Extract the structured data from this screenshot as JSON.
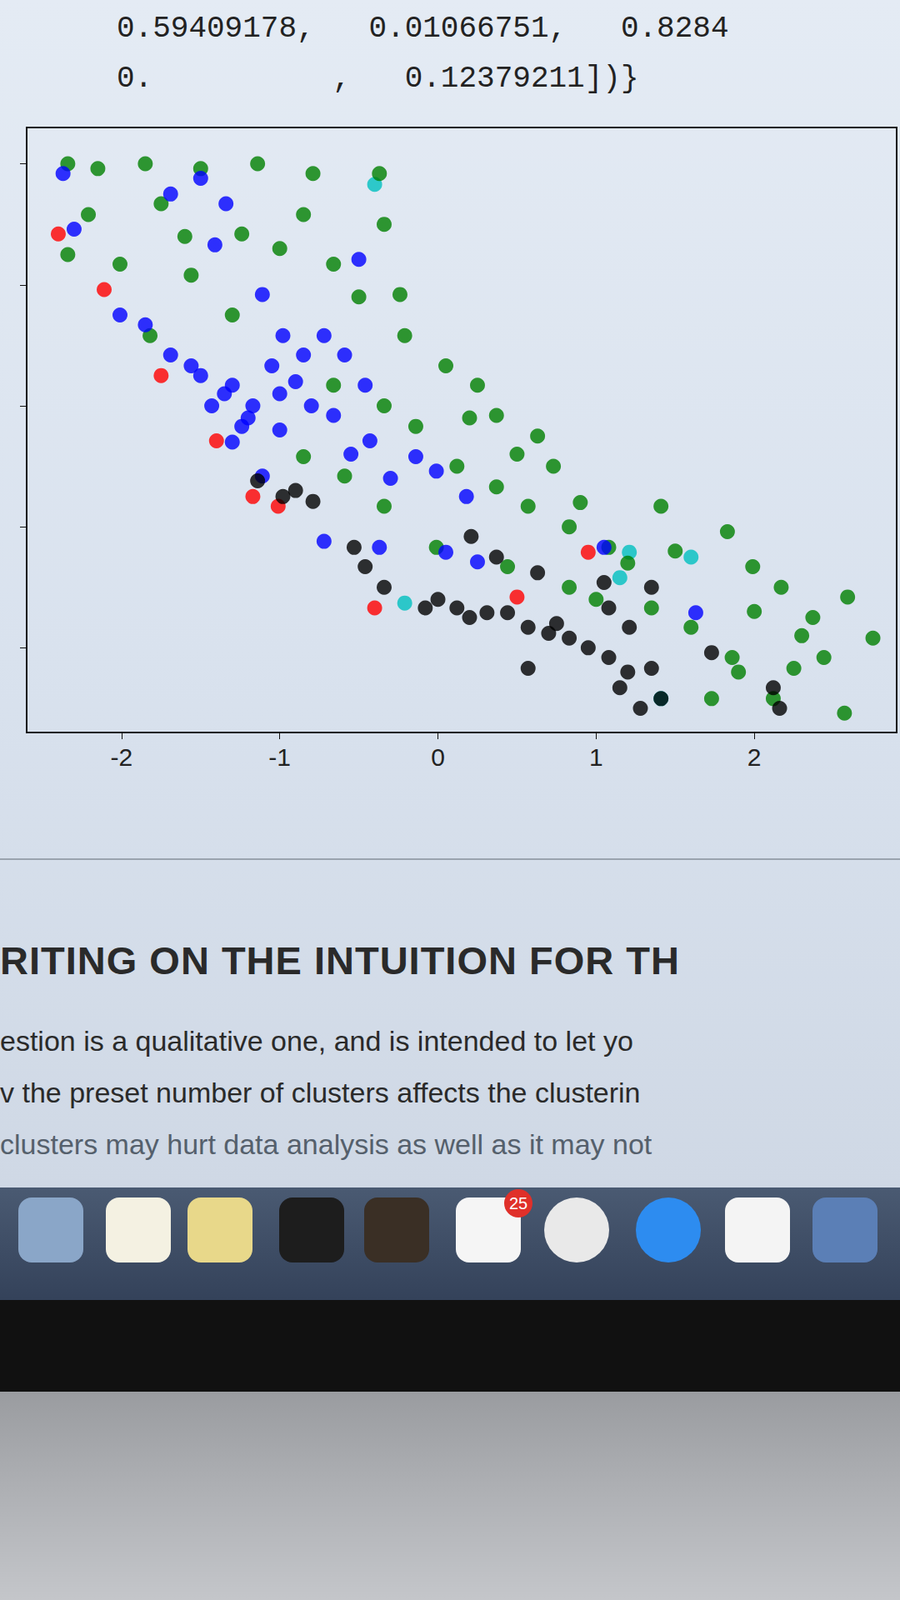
{
  "chart_data": {
    "type": "scatter",
    "series": [
      {
        "color": "#ff0000",
        "x": [
          -2.4,
          -2.11,
          -1.75,
          -1.4,
          -1.17,
          -1.01,
          -0.4,
          0.5,
          0.95
        ],
        "y": [
          2.42,
          1.96,
          1.25,
          0.71,
          0.25,
          0.17,
          -0.67,
          -0.58,
          -0.21
        ]
      },
      {
        "color": "#00bfbf",
        "x": [
          -0.4,
          1.21,
          1.6,
          -0.21,
          1.41,
          1.15
        ],
        "y": [
          2.83,
          -0.21,
          -0.25,
          -0.63,
          -1.42,
          -0.42
        ]
      },
      {
        "color": "#008000",
        "x": [
          -2.34,
          -2.15,
          -1.85,
          -1.5,
          -1.14,
          -0.79,
          -0.37,
          -2.21,
          -1.75,
          -1.24,
          -0.85,
          -0.34,
          -2.34,
          -2.01,
          -1.56,
          -0.66,
          -0.24,
          -1.82,
          -1.3,
          -0.21,
          0.05,
          0.25,
          0.37,
          0.63,
          0.73,
          -0.34,
          -0.14,
          0.12,
          0.37,
          0.57,
          0.83,
          1.08,
          1.41,
          1.83,
          1.99,
          2.17,
          2.37,
          2.59,
          2.75,
          2.57,
          2.44,
          2.25,
          1.86,
          1.6,
          1.35,
          0.83,
          0.44,
          -0.01,
          -0.34,
          -0.59,
          -0.85,
          -0.66,
          1.73,
          2.12,
          0.5,
          0.9,
          1.2,
          1.5,
          2.0,
          2.3,
          0.2,
          -0.5,
          -1.0,
          -1.6,
          1.9,
          1.0
        ],
        "y": [
          3.0,
          2.96,
          3.0,
          2.96,
          3.0,
          2.92,
          2.92,
          2.58,
          2.67,
          2.42,
          2.58,
          2.5,
          2.25,
          2.17,
          2.08,
          2.17,
          1.92,
          1.58,
          1.75,
          1.58,
          1.33,
          1.17,
          0.92,
          0.75,
          0.5,
          1.0,
          0.83,
          0.5,
          0.33,
          0.17,
          0.0,
          -0.17,
          0.17,
          -0.04,
          -0.33,
          -0.5,
          -0.75,
          -0.58,
          -0.92,
          -1.54,
          -1.08,
          -1.17,
          -1.08,
          -0.83,
          -0.67,
          -0.5,
          -0.33,
          -0.17,
          0.17,
          0.42,
          0.58,
          1.17,
          -1.42,
          -1.42,
          0.6,
          0.2,
          -0.3,
          -0.2,
          -0.7,
          -0.9,
          0.9,
          1.9,
          2.3,
          2.4,
          -1.2,
          -0.6
        ]
      },
      {
        "color": "#0000ff",
        "x": [
          -2.37,
          -2.3,
          -1.69,
          -1.5,
          -1.34,
          -1.41,
          -1.11,
          -0.98,
          -0.5,
          -2.01,
          -1.85,
          -1.69,
          -1.5,
          -1.3,
          -1.17,
          -1.05,
          -0.85,
          -0.72,
          -0.59,
          -0.66,
          -0.46,
          -0.43,
          -0.14,
          -0.01,
          0.18,
          0.05,
          -0.72,
          -0.37,
          0.25,
          1.05,
          1.63,
          -1.11,
          -1.24,
          -1.43,
          -1.56,
          -1.35,
          -1.2,
          -1.0,
          -0.9,
          -1.0,
          -0.8,
          -1.3,
          -0.3,
          -0.55
        ],
        "y": [
          2.92,
          2.46,
          2.75,
          2.88,
          2.67,
          2.33,
          1.92,
          1.58,
          2.21,
          1.75,
          1.67,
          1.42,
          1.25,
          1.17,
          1.0,
          1.33,
          1.42,
          1.58,
          1.42,
          0.92,
          1.17,
          0.71,
          0.58,
          0.46,
          0.25,
          -0.21,
          -0.12,
          -0.17,
          -0.29,
          -0.17,
          -0.71,
          0.42,
          0.83,
          1.0,
          1.33,
          1.1,
          0.9,
          1.1,
          1.2,
          0.8,
          1.0,
          0.7,
          0.4,
          0.6
        ]
      },
      {
        "color": "#000000",
        "x": [
          -1.14,
          -0.98,
          -0.79,
          -0.53,
          -0.46,
          -0.34,
          -0.08,
          0.12,
          0.31,
          0.44,
          0.57,
          0.7,
          0.83,
          0.95,
          1.08,
          0.57,
          1.15,
          1.28,
          1.41,
          1.35,
          0.21,
          0.37,
          0.63,
          1.05,
          1.35,
          1.73,
          2.12,
          2.16,
          1.08,
          1.21,
          0.0,
          0.2,
          0.75,
          1.2,
          -0.9
        ],
        "y": [
          0.38,
          0.25,
          0.21,
          -0.17,
          -0.33,
          -0.5,
          -0.67,
          -0.67,
          -0.71,
          -0.71,
          -0.83,
          -0.88,
          -0.92,
          -1.0,
          -1.08,
          -1.17,
          -1.33,
          -1.5,
          -1.42,
          -1.17,
          -0.08,
          -0.25,
          -0.38,
          -0.46,
          -0.5,
          -1.04,
          -1.33,
          -1.5,
          -0.67,
          -0.83,
          -0.6,
          -0.75,
          -0.8,
          -1.2,
          0.3
        ]
      }
    ],
    "xlim": [
      -2.6,
      2.9
    ],
    "ylim": [
      -1.7,
      3.3
    ],
    "xticks": [
      -2,
      -1,
      0,
      1,
      2
    ],
    "yticks": [
      -1,
      0,
      1,
      2,
      3
    ],
    "grid": false,
    "tick_labels": "x"
  },
  "page": {
    "code_output": [
      "0.59409178,   0.01066751,   0.8284",
      "0.          ,   0.12379211])}"
    ],
    "heading": "RITING ON THE INTUITION FOR TH",
    "paragraph": [
      "estion is a qualitative one, and is intended to let yo",
      "v the preset number of clusters affects the clusterin",
      "clusters may hurt data analysis as well as it may not"
    ],
    "dock_badge": "25"
  }
}
